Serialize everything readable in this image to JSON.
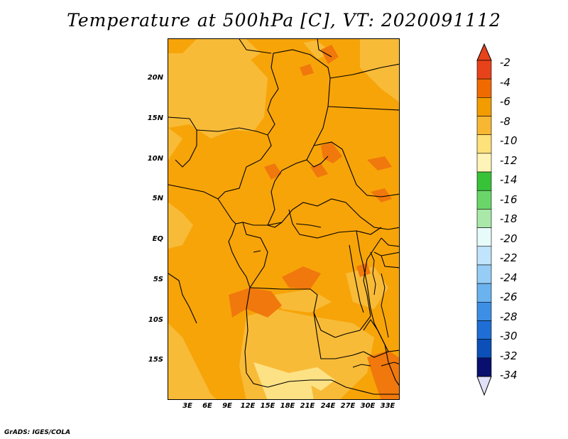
{
  "title": "Temperature at 500hPa [C], VT: 2020091112",
  "credit": "GrADS: IGES/COLA",
  "lat_labels": [
    "20N",
    "15N",
    "10N",
    "5N",
    "EQ",
    "5S",
    "10S",
    "15S"
  ],
  "lon_labels": [
    "3E",
    "6E",
    "9E",
    "12E",
    "15E",
    "18E",
    "21E",
    "24E",
    "27E",
    "30E",
    "33E"
  ],
  "colorbar": {
    "labels": [
      "-2",
      "-4",
      "-6",
      "-8",
      "-10",
      "-12",
      "-14",
      "-16",
      "-18",
      "-20",
      "-22",
      "-24",
      "-26",
      "-28",
      "-30",
      "-32",
      "-34"
    ],
    "colors": [
      "#e8421a",
      "#f06a00",
      "#f39c00",
      "#f7b733",
      "#fde17a",
      "#fff4b8",
      "#38c238",
      "#6ad66a",
      "#a9e8a9",
      "#e8fbfb",
      "#bfe4fb",
      "#96cdf6",
      "#6bb3ef",
      "#3d8fe6",
      "#1f6ed6",
      "#0c4fb8",
      "#080f6e"
    ],
    "top_arrow_color": "#e8421a",
    "bottom_arrow_color": "#e0e0f8"
  },
  "map_colors": {
    "background": "#f7a409",
    "lighter": "#f8bb38",
    "lightest": "#fde285",
    "darker": "#f0780c",
    "boundary": "#000000"
  }
}
